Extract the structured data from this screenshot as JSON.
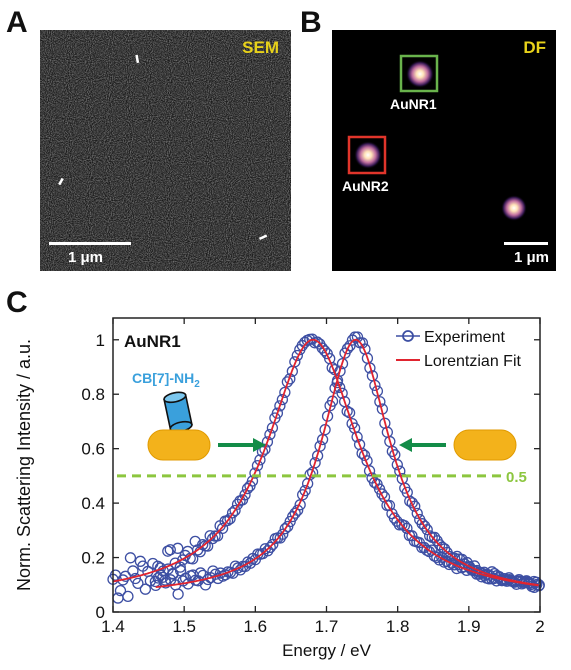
{
  "panels": {
    "a": {
      "letter": "A",
      "tag": "SEM",
      "scale_bar_label": "1 μm"
    },
    "b": {
      "letter": "B",
      "tag": "DF",
      "scale_bar_label": "1 μm",
      "particles": [
        {
          "label": "AuNR1",
          "box_color": "#69b34c"
        },
        {
          "label": "AuNR2",
          "box_color": "#e1352b"
        },
        {
          "label": ""
        }
      ]
    },
    "c": {
      "letter": "C"
    }
  },
  "chart_data": {
    "type": "line",
    "title": "",
    "inset_label": "AuNR1",
    "molecule_label": "CB[7]-NH",
    "molecule_subscript": "2",
    "xlabel": "Energy / eV",
    "ylabel": "Norm. Scattering Intensity / a.u.",
    "xlim": [
      1.4,
      2.0
    ],
    "ylim": [
      0,
      1.08
    ],
    "xticks": [
      "1.4",
      "1.5",
      "1.6",
      "1.7",
      "1.8",
      "1.9",
      "2"
    ],
    "yticks": [
      "0",
      "0.2",
      "0.4",
      "0.6",
      "0.8",
      "1"
    ],
    "threshold": {
      "value": 0.5,
      "label": "0.5",
      "color": "#8cc63f"
    },
    "legend": {
      "position": "top-right",
      "entries": [
        {
          "label": "Experiment",
          "color": "#3d4fa3",
          "marker": "circle"
        },
        {
          "label": "Lorentzian Fit",
          "color": "#e0242f",
          "marker": "line"
        }
      ]
    },
    "series": [
      {
        "peak_ev": 1.681,
        "fwhm_ev": 0.16,
        "baseline": 0.04,
        "x_start": 1.4,
        "color_points": "#3d4fa3",
        "color_fit": "#e0242f"
      },
      {
        "peak_ev": 1.741,
        "fwhm_ev": 0.12,
        "baseline": 0.05,
        "x_start": 1.46,
        "color_points": "#3d4fa3",
        "color_fit": "#e0242f"
      }
    ]
  }
}
